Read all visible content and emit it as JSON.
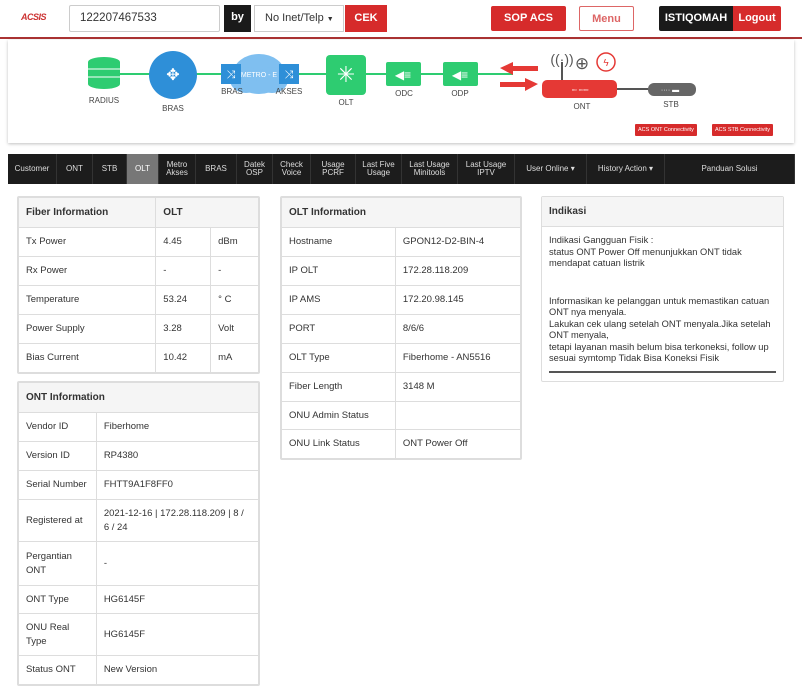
{
  "header": {
    "logo": "ACSIS",
    "search_value": "122207467533",
    "by_label": "by",
    "search_type": "No Inet/Telp",
    "cek_label": "CEK",
    "sop_label": "SOP ACS",
    "menu_label": "Menu",
    "user": "ISTIQOMAH",
    "logout_label": "Logout"
  },
  "topology": {
    "radius": "RADIUS",
    "bras": "BRAS",
    "metro": "METRO - E",
    "metro_bras": "BRAS",
    "metro_akses": "AKSES",
    "olt": "OLT",
    "odc": "ODC",
    "odp": "ODP",
    "ont": "ONT",
    "stb": "STB",
    "ont_conn": "ACS ONT Connectivity",
    "stb_conn": "ACS STB Connectivity",
    "ont_status_color": "#e53935",
    "link_color": "#2ecc71"
  },
  "nav": {
    "items": [
      {
        "label": "Customer"
      },
      {
        "label": "ONT"
      },
      {
        "label": "STB"
      },
      {
        "label": "OLT",
        "active": true
      },
      {
        "label": "Metro Akses"
      },
      {
        "label": "BRAS"
      },
      {
        "label": "Datek OSP"
      },
      {
        "label": "Check Voice"
      },
      {
        "label": "Usage PCRF"
      },
      {
        "label": "Last Five Usage"
      },
      {
        "label": "Last Usage Minitools"
      },
      {
        "label": "Last Usage IPTV"
      },
      {
        "label": "User Online ▾"
      },
      {
        "label": "History Action ▾"
      },
      {
        "label": "Panduan Solusi"
      }
    ]
  },
  "fiber": {
    "title": "Fiber Information",
    "col2": "OLT",
    "rows": [
      [
        "Tx Power",
        "4.45",
        "dBm"
      ],
      [
        "Rx Power",
        "-",
        "-"
      ],
      [
        "Temperature",
        "53.24",
        "° C"
      ],
      [
        "Power Supply",
        "3.28",
        "Volt"
      ],
      [
        "Bias Current",
        "10.42",
        "mA"
      ]
    ]
  },
  "ont": {
    "title": "ONT Information",
    "rows": [
      [
        "Vendor ID",
        "Fiberhome"
      ],
      [
        "Version ID",
        "RP4380"
      ],
      [
        "Serial Number",
        "FHTT9A1F8FF0"
      ],
      [
        "Registered at",
        "2021-12-16 | 172.28.118.209 | 8 / 6 / 24"
      ],
      [
        "Pergantian ONT",
        "-"
      ],
      [
        "ONT Type",
        "HG6145F"
      ],
      [
        "ONU Real Type",
        "HG6145F"
      ],
      [
        "Status ONT",
        "New Version"
      ]
    ]
  },
  "olt": {
    "title": "OLT Information",
    "rows": [
      [
        "Hostname",
        "GPON12-D2-BIN-4"
      ],
      [
        "IP OLT",
        "172.28.118.209"
      ],
      [
        "IP AMS",
        "172.20.98.145"
      ],
      [
        "PORT",
        "8/6/6"
      ],
      [
        "OLT Type",
        "Fiberhome - AN5516"
      ],
      [
        "Fiber Length",
        "3148 M"
      ],
      [
        "ONU Admin Status",
        ""
      ],
      [
        "ONU Link Status",
        "ONT Power Off"
      ]
    ]
  },
  "indikasi": {
    "title": "Indikasi",
    "lines": [
      "Indikasi Gangguan Fisik :",
      "status ONT Power Off menunjukkan ONT tidak mendapat catuan listrik",
      "",
      "Informasikan ke pelanggan untuk memastikan catuan ONT nya menyala.",
      "Lakukan cek ulang setelah ONT menyala.Jika setelah ONT menyala,",
      "tetapi layanan masih belum bisa terkoneksi, follow up sesuai symtomp Tidak Bisa Koneksi Fisik"
    ]
  }
}
